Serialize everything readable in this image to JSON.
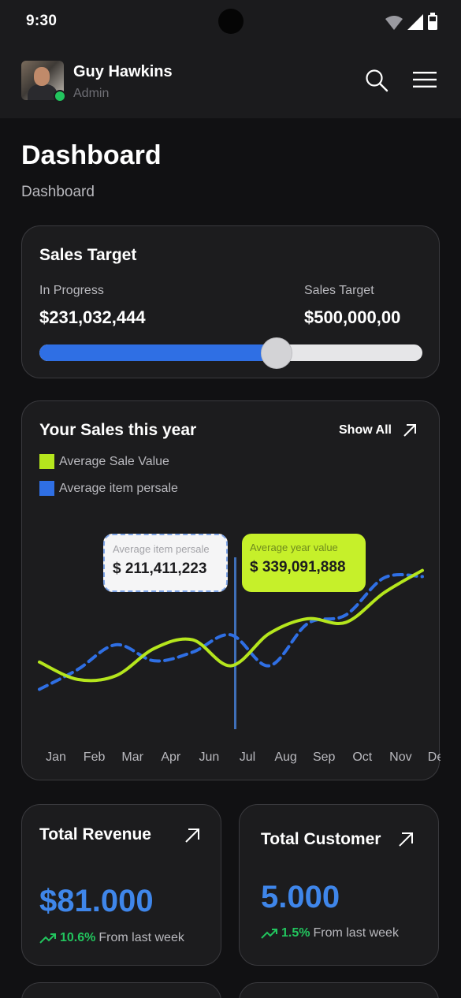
{
  "status_bar": {
    "time": "9:30"
  },
  "header": {
    "user_name": "Guy Hawkins",
    "user_role": "Admin",
    "avatar_icon": "user-photo",
    "search_icon": "search-icon",
    "menu_icon": "menu-icon"
  },
  "page": {
    "title": "Dashboard",
    "breadcrumb": "Dashboard"
  },
  "sales_target": {
    "title": "Sales Target",
    "in_progress_label": "In Progress",
    "in_progress_value": "$231,032,444",
    "target_label": "Sales Target",
    "target_value": "$500,000,00",
    "progress_fraction": 0.62,
    "fill_color": "#2f6fe4"
  },
  "sales_chart": {
    "title": "Your Sales this year",
    "show_all": "Show All",
    "legend": [
      {
        "label": "Average Sale Value",
        "color": "#b5e61d"
      },
      {
        "label": "Average item persale",
        "color": "#2f6fe4"
      }
    ],
    "tooltips": {
      "item": {
        "label": "Average item persale",
        "value": "$ 211,411,223"
      },
      "year": {
        "label": "Average year value",
        "value": "$ 339,091,888"
      }
    },
    "highlight_month": "Jul"
  },
  "chart_data": {
    "type": "line",
    "categories": [
      "Jan",
      "Feb",
      "Mar",
      "Apr",
      "Jun",
      "Jul",
      "Aug",
      "Sep",
      "Oct",
      "Nov",
      "Des"
    ],
    "series": [
      {
        "name": "Average Sale Value",
        "color": "#b5e61d",
        "style": "solid",
        "values": [
          44,
          30,
          33,
          55,
          62,
          41,
          67,
          79,
          76,
          100,
          118
        ]
      },
      {
        "name": "Average item persale",
        "color": "#2f6fe4",
        "style": "dashed",
        "values": [
          22,
          38,
          58,
          45,
          52,
          66,
          41,
          75,
          82,
          112,
          113
        ]
      }
    ],
    "ylim": [
      0,
      140
    ],
    "grid": false,
    "legend_position": "top-left"
  },
  "total_revenue": {
    "title": "Total Revenue",
    "value": "$81.000",
    "trend_pct": "10.6%",
    "trend_text": "From last week"
  },
  "total_customer": {
    "title": "Total Customer",
    "value": "5.000",
    "trend_pct": "1.5%",
    "trend_text": "From last week"
  }
}
